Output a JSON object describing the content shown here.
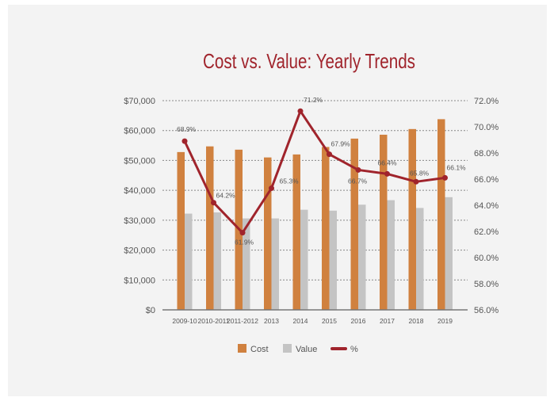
{
  "chart_data": {
    "type": "bar",
    "title": "Cost vs. Value: Yearly Trends",
    "categories": [
      "2009-10",
      "2010-2011",
      "2011-2012",
      "2013",
      "2014",
      "2015",
      "2016",
      "2017",
      "2018",
      "2019"
    ],
    "series": [
      {
        "name": "Cost",
        "type": "bar",
        "axis": "left",
        "color": "#d0813f",
        "values": [
          52800,
          54700,
          53600,
          51000,
          52000,
          54500,
          57300,
          58600,
          60500,
          63800
        ]
      },
      {
        "name": "Value",
        "type": "bar",
        "axis": "left",
        "color": "#c4c4c4",
        "values": [
          32200,
          32600,
          30600,
          30600,
          33500,
          33200,
          35200,
          36700,
          34100,
          37700
        ]
      },
      {
        "name": "%",
        "type": "line",
        "axis": "right",
        "color": "#a0242c",
        "values": [
          68.9,
          64.2,
          61.9,
          65.3,
          71.2,
          67.9,
          66.7,
          66.4,
          65.8,
          66.1
        ],
        "labels": [
          "68.9%",
          "64.2%",
          "61.9%",
          "65.3%",
          "71.2%",
          "67.9%",
          "66.7%",
          "66.4%",
          "65.8%",
          "66.1%"
        ]
      }
    ],
    "left_axis": {
      "range": [
        0,
        70000
      ],
      "ticks": [
        "$0",
        "$10,000",
        "$20,000",
        "$30,000",
        "$40,000",
        "$50,000",
        "$60,000",
        "$70,000"
      ]
    },
    "right_axis": {
      "range": [
        56,
        72
      ],
      "ticks": [
        "56.0%",
        "58.0%",
        "60.0%",
        "62.0%",
        "64.0%",
        "66.0%",
        "68.0%",
        "70.0%",
        "72.0%"
      ]
    },
    "grid": "horizontal dotted",
    "legend": {
      "placement": "bottom",
      "entries": [
        "Cost",
        "Value",
        "%"
      ]
    },
    "title_color": "#a0242c"
  }
}
